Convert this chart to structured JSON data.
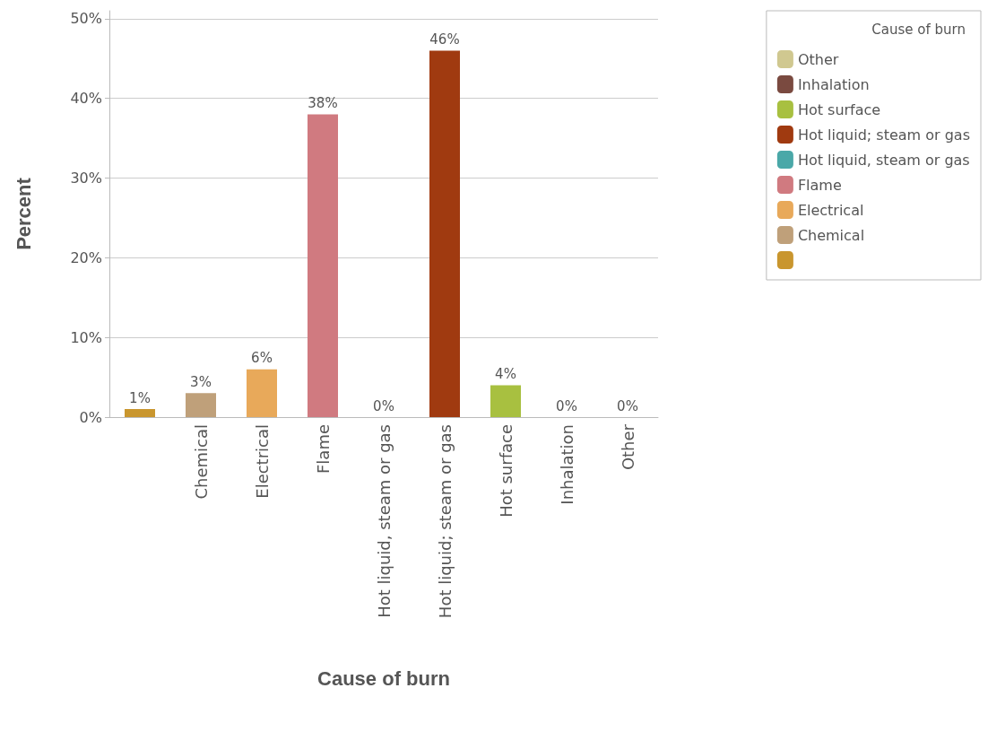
{
  "chart_data": {
    "type": "bar",
    "xlabel": "Cause of burn",
    "ylabel": "Percent",
    "legend_title": "Cause of burn",
    "categories": [
      null,
      "Chemical",
      "Electrical",
      "Flame",
      "Hot liquid, steam or gas",
      "Hot liquid; steam or gas",
      "Hot surface",
      "Inhalation",
      "Other"
    ],
    "series": [
      {
        "color": "#c9962e",
        "values": [
          1,
          null,
          null,
          null,
          null,
          null,
          null,
          null,
          null
        ],
        "value_labels": [
          "1%",
          null,
          null,
          null,
          null,
          null,
          null,
          null,
          null
        ]
      },
      {
        "name": "Chemical",
        "color": "#bfa07a",
        "values": [
          null,
          3,
          null,
          null,
          null,
          null,
          null,
          null,
          null
        ],
        "value_labels": [
          null,
          "3%",
          null,
          null,
          null,
          null,
          null,
          null,
          null
        ]
      },
      {
        "name": "Electrical",
        "color": "#e8a95a",
        "values": [
          null,
          null,
          6,
          null,
          null,
          null,
          null,
          null,
          null
        ],
        "value_labels": [
          null,
          null,
          "6%",
          null,
          null,
          null,
          null,
          null,
          null
        ]
      },
      {
        "name": "Flame",
        "color": "#d07a80",
        "values": [
          null,
          null,
          null,
          38,
          null,
          null,
          null,
          null,
          null
        ],
        "value_labels": [
          null,
          null,
          null,
          "38%",
          null,
          null,
          null,
          null,
          null
        ]
      },
      {
        "name": "Hot liquid, steam or gas",
        "color": "#4aa8a8",
        "values": [
          null,
          null,
          null,
          null,
          0,
          null,
          null,
          null,
          null
        ],
        "value_labels": [
          null,
          null,
          null,
          null,
          "0%",
          null,
          null,
          null,
          null
        ]
      },
      {
        "name": "Hot liquid; steam or gas",
        "color": "#a03a10",
        "values": [
          null,
          null,
          null,
          null,
          null,
          46,
          null,
          null,
          null
        ],
        "value_labels": [
          null,
          null,
          null,
          null,
          null,
          "46%",
          null,
          null,
          null
        ]
      },
      {
        "name": "Hot surface",
        "color": "#a8c040",
        "values": [
          null,
          null,
          null,
          null,
          null,
          null,
          4,
          null,
          null
        ],
        "value_labels": [
          null,
          null,
          null,
          null,
          null,
          null,
          "4%",
          null,
          null
        ]
      },
      {
        "name": "Inhalation",
        "color": "#7a4a40",
        "values": [
          null,
          null,
          null,
          null,
          null,
          null,
          null,
          0,
          null
        ],
        "value_labels": [
          null,
          null,
          null,
          null,
          null,
          null,
          null,
          "0%",
          null
        ]
      },
      {
        "name": "Other",
        "color": "#d0c890",
        "values": [
          null,
          null,
          null,
          null,
          null,
          null,
          null,
          null,
          0
        ],
        "value_labels": [
          null,
          null,
          null,
          null,
          null,
          null,
          null,
          null,
          "0%"
        ]
      }
    ],
    "ylim": [
      0,
      51
    ],
    "yticks": [
      {
        "value": 0,
        "label": "0%"
      },
      {
        "value": 10,
        "label": "10%"
      },
      {
        "value": 20,
        "label": "20%"
      },
      {
        "value": 30,
        "label": "30%"
      },
      {
        "value": 40,
        "label": "40%"
      },
      {
        "value": 50,
        "label": "50%"
      }
    ],
    "grid": "y",
    "legend": "right"
  }
}
